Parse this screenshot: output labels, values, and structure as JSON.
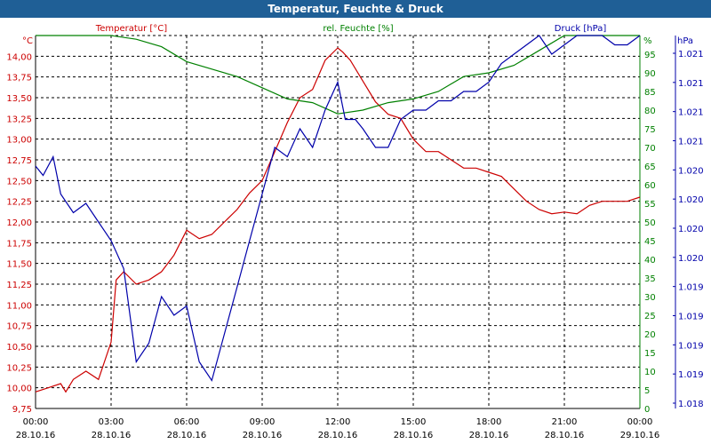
{
  "window": {
    "title": "Temperatur, Feuchte & Druck"
  },
  "colors": {
    "temperature": "#cc0000",
    "humidity": "#008000",
    "pressure": "#0000aa",
    "titlebar": "#1f5f96"
  },
  "chart_data": {
    "type": "line",
    "title": "Temperatur, Feuchte & Druck",
    "grid": true,
    "x_ticks": [
      {
        "time": "00:00",
        "date": "28.10.16"
      },
      {
        "time": "03:00",
        "date": "28.10.16"
      },
      {
        "time": "06:00",
        "date": "28.10.16"
      },
      {
        "time": "09:00",
        "date": "28.10.16"
      },
      {
        "time": "12:00",
        "date": "28.10.16"
      },
      {
        "time": "15:00",
        "date": "28.10.16"
      },
      {
        "time": "18:00",
        "date": "28.10.16"
      },
      {
        "time": "21:00",
        "date": "28.10.16"
      },
      {
        "time": "00:00",
        "date": "29.10.16"
      }
    ],
    "axes": {
      "temperature": {
        "label": "Temperatur [°C]",
        "unit": "°C",
        "range": [
          9.75,
          14.25
        ],
        "ticks": [
          "9,75",
          "10,00",
          "10,25",
          "10,50",
          "10,75",
          "11,00",
          "11,25",
          "11,50",
          "11,75",
          "12,00",
          "12,25",
          "12,50",
          "12,75",
          "13,00",
          "13,25",
          "13,50",
          "13,75",
          "14,00"
        ]
      },
      "humidity": {
        "label": "rel. Feuchte [%]",
        "unit": "%",
        "range": [
          0,
          100
        ],
        "ticks": [
          "0",
          "5",
          "10",
          "15",
          "20",
          "25",
          "30",
          "35",
          "40",
          "45",
          "50",
          "55",
          "60",
          "65",
          "70",
          "75",
          "80",
          "85",
          "90",
          "95"
        ]
      },
      "pressure": {
        "label": "Druck [hPa]",
        "unit": "hPa",
        "range": [
          1.0175,
          1.0215
        ],
        "ticks": [
          "1.018",
          "1.019",
          "1.019",
          "1.019",
          "1.019",
          "1.020",
          "1.020",
          "1.020",
          "1.020",
          "1.021",
          "1.021",
          "1.021",
          "1.021"
        ]
      }
    },
    "series": [
      {
        "name": "Temperatur [°C]",
        "axis": "temperature",
        "x_hours": [
          0,
          0.5,
          1,
          1.2,
          1.5,
          2,
          2.5,
          3,
          3.2,
          3.5,
          4,
          4.5,
          5,
          5.5,
          6,
          6.5,
          7,
          7.5,
          8,
          8.5,
          9,
          9.5,
          10,
          10.5,
          11,
          11.5,
          12,
          12.2,
          12.5,
          13,
          13.5,
          14,
          14.5,
          15,
          15.5,
          16,
          16.5,
          17,
          17.5,
          18,
          18.5,
          19,
          19.5,
          20,
          20.5,
          21,
          21.5,
          22,
          22.5,
          23,
          23.5,
          24
        ],
        "values": [
          9.95,
          10.0,
          10.05,
          9.95,
          10.1,
          10.2,
          10.1,
          10.55,
          11.3,
          11.4,
          11.25,
          11.3,
          11.4,
          11.6,
          11.9,
          11.8,
          11.85,
          12.0,
          12.15,
          12.35,
          12.5,
          12.85,
          13.2,
          13.5,
          13.6,
          13.95,
          14.1,
          14.05,
          13.95,
          13.7,
          13.45,
          13.3,
          13.25,
          13.0,
          12.85,
          12.85,
          12.75,
          12.65,
          12.65,
          12.6,
          12.55,
          12.4,
          12.25,
          12.15,
          12.1,
          12.12,
          12.1,
          12.2,
          12.25,
          12.25,
          12.25,
          12.3
        ]
      },
      {
        "name": "rel. Feuchte [%]",
        "axis": "humidity",
        "x_hours": [
          0,
          1,
          2,
          3,
          4,
          5,
          6,
          7,
          8,
          9,
          10,
          11,
          12,
          13,
          14,
          15,
          16,
          17,
          18,
          19,
          20,
          21,
          22,
          23,
          24
        ],
        "values": [
          100,
          100,
          100,
          100,
          99,
          97,
          93,
          91,
          89,
          86,
          83,
          82,
          79,
          80,
          82,
          83,
          85,
          89,
          90,
          92,
          96,
          100,
          100,
          100,
          100
        ]
      },
      {
        "name": "Druck [hPa]",
        "axis": "pressure",
        "x_hours": [
          0,
          0.3,
          0.7,
          1,
          1.5,
          2,
          2.5,
          3,
          3.5,
          4,
          4.5,
          5,
          5.5,
          6,
          6.5,
          7,
          7.5,
          8,
          8.5,
          9,
          9.5,
          10,
          10.5,
          11,
          11.5,
          12,
          12.3,
          12.7,
          13,
          13.5,
          14,
          14.5,
          15,
          15.5,
          16,
          16.5,
          17,
          17.5,
          18,
          18.5,
          19,
          19.5,
          20,
          20.5,
          21,
          21.5,
          22,
          22.5,
          23,
          23.5,
          24
        ],
        "values": [
          1.0201,
          1.02,
          1.0202,
          1.0198,
          1.0196,
          1.0197,
          1.0195,
          1.0193,
          1.019,
          1.018,
          1.0182,
          1.0187,
          1.0185,
          1.0186,
          1.018,
          1.0178,
          1.0183,
          1.0188,
          1.0193,
          1.0198,
          1.0203,
          1.0202,
          1.0205,
          1.0203,
          1.0207,
          1.021,
          1.0206,
          1.0206,
          1.0205,
          1.0203,
          1.0203,
          1.0206,
          1.0207,
          1.0207,
          1.0208,
          1.0208,
          1.0209,
          1.0209,
          1.021,
          1.0212,
          1.0213,
          1.0214,
          1.0215,
          1.0213,
          1.0214,
          1.0216,
          1.0216,
          1.0215,
          1.0214,
          1.0214,
          1.0215
        ]
      }
    ]
  }
}
